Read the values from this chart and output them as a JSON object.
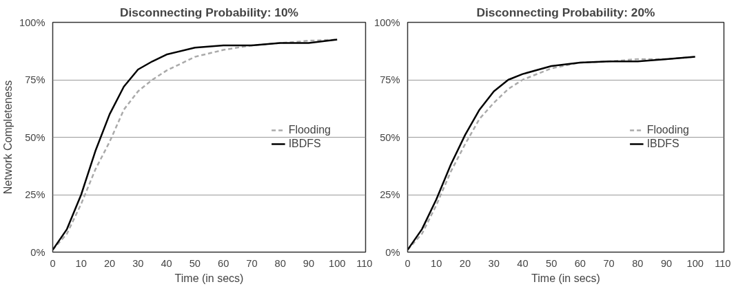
{
  "chart_data": [
    {
      "type": "line",
      "title": "Disconnecting Probability: 10%",
      "xlabel": "Time (in secs)",
      "ylabel": "Network Completeness",
      "x": [
        0,
        5,
        10,
        15,
        20,
        25,
        30,
        35,
        40,
        50,
        60,
        70,
        80,
        90,
        100
      ],
      "series": [
        {
          "name": "Flooding",
          "color": "#aaaaaa",
          "line_style": "dashed",
          "values": [
            1,
            8,
            21,
            36,
            48,
            62,
            70,
            75,
            79,
            85,
            88,
            90,
            91,
            92,
            92.5
          ]
        },
        {
          "name": "IBDFS",
          "color": "#000000",
          "line_style": "solid",
          "values": [
            1,
            10,
            25,
            44,
            60,
            72,
            79.5,
            83,
            86,
            89,
            90,
            90,
            91,
            91,
            92.5
          ]
        }
      ],
      "xlim": [
        0,
        110
      ],
      "xticks": [
        0,
        10,
        20,
        30,
        40,
        50,
        60,
        70,
        80,
        90,
        100,
        110
      ],
      "ylim": [
        0,
        100
      ],
      "yticks": [
        {
          "value": 0,
          "label": "0%"
        },
        {
          "value": 25,
          "label": "25%"
        },
        {
          "value": 50,
          "label": "50%"
        },
        {
          "value": 75,
          "label": "75%"
        },
        {
          "value": 100,
          "label": "100%"
        }
      ],
      "grid": "y",
      "legend": "right"
    },
    {
      "type": "line",
      "title": "Disconnecting Probability: 20%",
      "xlabel": "Time (in secs)",
      "x": [
        0,
        5,
        10,
        15,
        20,
        25,
        30,
        35,
        40,
        50,
        60,
        70,
        80,
        90,
        100
      ],
      "series": [
        {
          "name": "Flooding",
          "color": "#aaaaaa",
          "line_style": "dashed",
          "values": [
            1,
            8,
            20.5,
            35,
            47,
            58,
            65,
            71,
            75,
            80,
            82.5,
            83,
            84,
            84,
            85
          ]
        },
        {
          "name": "IBDFS",
          "color": "#000000",
          "line_style": "solid",
          "values": [
            1,
            10,
            23,
            38,
            51,
            62,
            70,
            75,
            77.5,
            81,
            82.5,
            83,
            83,
            84,
            85
          ]
        }
      ],
      "xlim": [
        0,
        110
      ],
      "xticks": [
        0,
        10,
        20,
        30,
        40,
        50,
        60,
        70,
        80,
        90,
        100,
        110
      ],
      "ylim": [
        0,
        100
      ],
      "yticks": [
        {
          "value": 0,
          "label": "0%"
        },
        {
          "value": 25,
          "label": "25%"
        },
        {
          "value": 50,
          "label": "50%"
        },
        {
          "value": 75,
          "label": "75%"
        },
        {
          "value": 100,
          "label": "100%"
        }
      ],
      "grid": "y",
      "legend": "right"
    }
  ]
}
